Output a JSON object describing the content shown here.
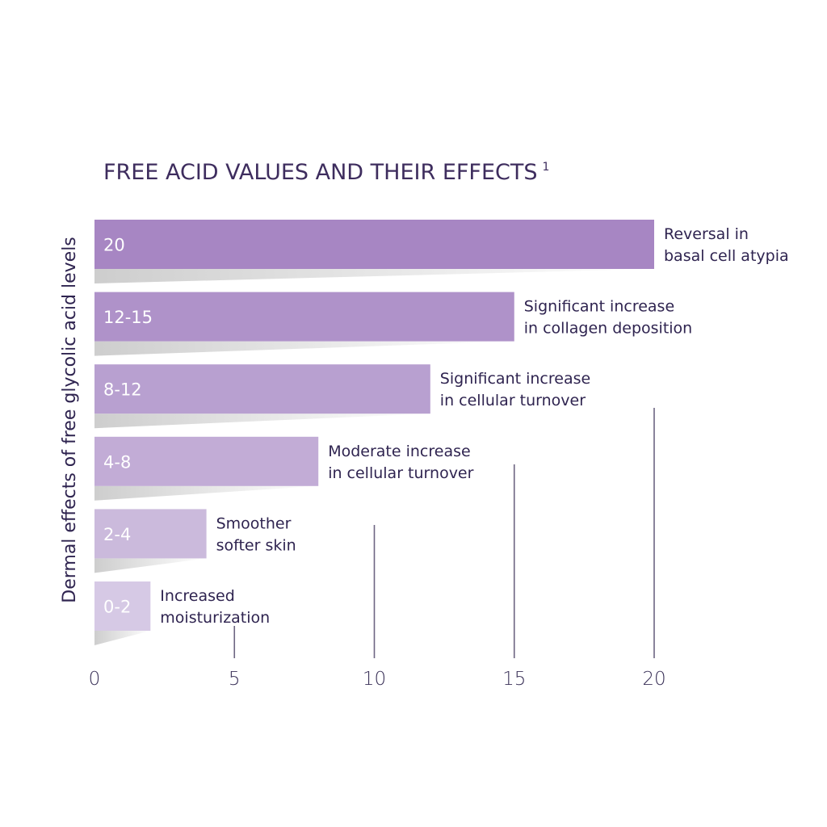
{
  "chart_data": {
    "type": "bar",
    "orientation": "horizontal",
    "title": "FREE ACID VALUES AND THEIR EFFECTS",
    "title_superscript": "1",
    "ylabel": "Dermal effects of free glycolic acid levels",
    "xlabel": "",
    "xlim": [
      0,
      20
    ],
    "xticks": [
      "0",
      "5",
      "10",
      "15",
      "20"
    ],
    "grid": "vertical lines at ticks",
    "categories": [
      "20",
      "12-15",
      "8-12",
      "4-8",
      "2-4",
      "0-2"
    ],
    "values": [
      20,
      15,
      12,
      8,
      4,
      2
    ],
    "effects": [
      [
        "Reversal in",
        "basal cell atypia"
      ],
      [
        "Significant increase",
        "in collagen deposition"
      ],
      [
        "Significant increase",
        "in cellular turnover"
      ],
      [
        "Moderate increase",
        "in cellular turnover"
      ],
      [
        "Smoother",
        "softer skin"
      ],
      [
        "Increased",
        "moisturization"
      ]
    ],
    "colors": [
      "#a786c3",
      "#af92c9",
      "#b8a0d0",
      "#c2acd6",
      "#cbbadc",
      "#d6c9e5"
    ]
  }
}
